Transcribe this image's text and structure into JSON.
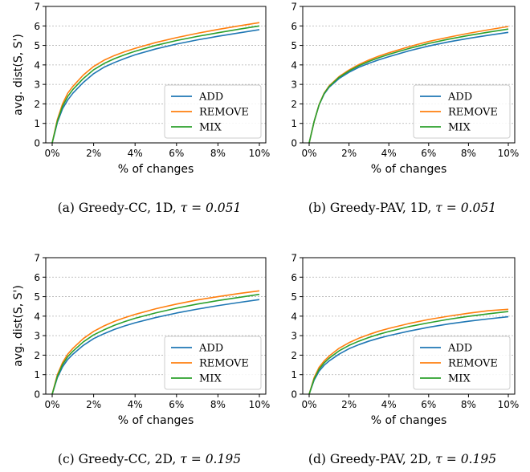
{
  "chart_data": [
    {
      "type": "line",
      "panel": "a",
      "caption_main": "(a) Greedy-CC, 1D,",
      "caption_tau": "τ = 0.051",
      "xlabel": "% of changes",
      "ylabel": "avg. dist(S, S')",
      "xlim": [
        0,
        10
      ],
      "ylim": [
        0,
        7
      ],
      "xticks": [
        "0%",
        "2%",
        "4%",
        "6%",
        "8%",
        "10%"
      ],
      "yticks": [
        "0",
        "1",
        "2",
        "3",
        "4",
        "5",
        "6",
        "7"
      ],
      "grid": true,
      "legend_position": "lower-right",
      "x": [
        0,
        0.25,
        0.5,
        0.75,
        1,
        1.5,
        2,
        2.5,
        3,
        3.5,
        4,
        5,
        6,
        7,
        8,
        9,
        10
      ],
      "series": [
        {
          "name": "ADD",
          "color": "#1f77b4",
          "values": [
            0,
            1.05,
            1.75,
            2.2,
            2.55,
            3.1,
            3.55,
            3.88,
            4.12,
            4.33,
            4.52,
            4.82,
            5.07,
            5.28,
            5.47,
            5.64,
            5.81
          ]
        },
        {
          "name": "REMOVE",
          "color": "#ff7f0e",
          "values": [
            0,
            1.2,
            2.0,
            2.55,
            2.9,
            3.48,
            3.92,
            4.24,
            4.48,
            4.68,
            4.85,
            5.15,
            5.4,
            5.62,
            5.82,
            6.0,
            6.17
          ]
        },
        {
          "name": "MIX",
          "color": "#2ca02c",
          "values": [
            0,
            1.12,
            1.88,
            2.38,
            2.74,
            3.3,
            3.75,
            4.07,
            4.32,
            4.52,
            4.7,
            5.0,
            5.25,
            5.46,
            5.65,
            5.83,
            6.0
          ]
        }
      ]
    },
    {
      "type": "line",
      "panel": "b",
      "caption_main": "(b) Greedy-PAV, 1D,",
      "caption_tau": "τ = 0.051",
      "xlabel": "% of changes",
      "ylabel": "",
      "xlim": [
        0,
        10
      ],
      "ylim": [
        0,
        7
      ],
      "xticks": [
        "0%",
        "2%",
        "4%",
        "6%",
        "8%",
        "10%"
      ],
      "yticks": [
        "0",
        "1",
        "2",
        "3",
        "4",
        "5",
        "6",
        "7"
      ],
      "grid": true,
      "legend_position": "lower-right",
      "x": [
        0,
        0.25,
        0.5,
        0.75,
        1,
        1.5,
        2,
        2.5,
        3,
        3.5,
        4,
        5,
        6,
        7,
        8,
        9,
        10
      ],
      "series": [
        {
          "name": "ADD",
          "color": "#1f77b4",
          "values": [
            0,
            1.1,
            1.95,
            2.5,
            2.85,
            3.3,
            3.62,
            3.88,
            4.08,
            4.26,
            4.42,
            4.72,
            4.97,
            5.18,
            5.36,
            5.52,
            5.67
          ]
        },
        {
          "name": "REMOVE",
          "color": "#ff7f0e",
          "values": [
            0,
            1.1,
            1.97,
            2.55,
            2.92,
            3.4,
            3.74,
            4.02,
            4.25,
            4.45,
            4.62,
            4.93,
            5.2,
            5.42,
            5.62,
            5.8,
            5.97
          ]
        },
        {
          "name": "MIX",
          "color": "#2ca02c",
          "values": [
            0,
            1.1,
            1.96,
            2.53,
            2.89,
            3.36,
            3.69,
            3.96,
            4.18,
            4.37,
            4.54,
            4.84,
            5.1,
            5.32,
            5.51,
            5.68,
            5.84
          ]
        }
      ]
    },
    {
      "type": "line",
      "panel": "c",
      "caption_main": "(c) Greedy-CC, 2D,",
      "caption_tau": "τ = 0.195",
      "xlabel": "% of changes",
      "ylabel": "avg. dist(S, S')",
      "xlim": [
        0,
        10
      ],
      "ylim": [
        0,
        7
      ],
      "xticks": [
        "0%",
        "2%",
        "4%",
        "6%",
        "8%",
        "10%"
      ],
      "yticks": [
        "0",
        "1",
        "2",
        "3",
        "4",
        "5",
        "6",
        "7"
      ],
      "grid": true,
      "legend_position": "lower-right",
      "x": [
        0,
        0.25,
        0.5,
        0.75,
        1,
        1.5,
        2,
        2.5,
        3,
        3.5,
        4,
        5,
        6,
        7,
        8,
        9,
        10
      ],
      "series": [
        {
          "name": "ADD",
          "color": "#1f77b4",
          "values": [
            0,
            0.85,
            1.4,
            1.78,
            2.05,
            2.5,
            2.85,
            3.1,
            3.32,
            3.5,
            3.66,
            3.93,
            4.16,
            4.36,
            4.54,
            4.7,
            4.85
          ]
        },
        {
          "name": "REMOVE",
          "color": "#ff7f0e",
          "values": [
            0,
            1.0,
            1.62,
            2.05,
            2.35,
            2.85,
            3.22,
            3.5,
            3.73,
            3.92,
            4.09,
            4.38,
            4.62,
            4.83,
            5.0,
            5.16,
            5.3
          ]
        },
        {
          "name": "MIX",
          "color": "#2ca02c",
          "values": [
            0,
            0.92,
            1.52,
            1.92,
            2.2,
            2.68,
            3.04,
            3.3,
            3.53,
            3.72,
            3.89,
            4.17,
            4.41,
            4.62,
            4.8,
            4.96,
            5.12
          ]
        }
      ]
    },
    {
      "type": "line",
      "panel": "d",
      "caption_main": "(d) Greedy-PAV, 2D,",
      "caption_tau": "τ = 0.195",
      "xlabel": "% of changes",
      "ylabel": "",
      "xlim": [
        0,
        10
      ],
      "ylim": [
        0,
        7
      ],
      "xticks": [
        "0%",
        "2%",
        "4%",
        "6%",
        "8%",
        "10%"
      ],
      "yticks": [
        "0",
        "1",
        "2",
        "3",
        "4",
        "5",
        "6",
        "7"
      ],
      "grid": true,
      "legend_position": "lower-right",
      "x": [
        0,
        0.25,
        0.5,
        0.75,
        1,
        1.5,
        2,
        2.5,
        3,
        3.5,
        4,
        5,
        6,
        7,
        8,
        9,
        10
      ],
      "series": [
        {
          "name": "ADD",
          "color": "#1f77b4",
          "values": [
            0,
            0.72,
            1.18,
            1.48,
            1.7,
            2.05,
            2.33,
            2.54,
            2.72,
            2.87,
            3.0,
            3.23,
            3.43,
            3.6,
            3.74,
            3.86,
            3.97
          ]
        },
        {
          "name": "REMOVE",
          "color": "#ff7f0e",
          "values": [
            0,
            0.85,
            1.38,
            1.7,
            1.95,
            2.35,
            2.64,
            2.87,
            3.06,
            3.23,
            3.37,
            3.62,
            3.83,
            4.0,
            4.15,
            4.28,
            4.35
          ]
        },
        {
          "name": "MIX",
          "color": "#2ca02c",
          "values": [
            0,
            0.78,
            1.28,
            1.6,
            1.84,
            2.22,
            2.5,
            2.72,
            2.91,
            3.07,
            3.21,
            3.46,
            3.66,
            3.84,
            3.99,
            4.12,
            4.24
          ]
        }
      ]
    }
  ]
}
